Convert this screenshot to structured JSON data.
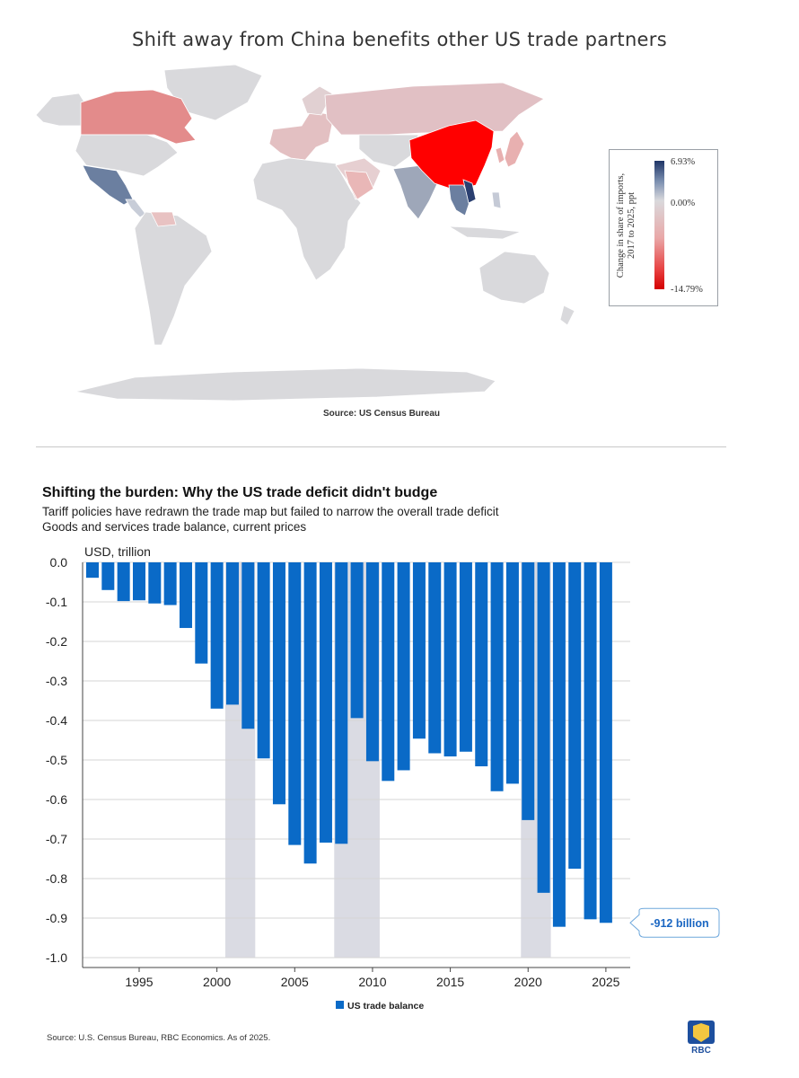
{
  "map": {
    "title": "Shift away from China benefits other US trade partners",
    "source": "Source: US Census Bureau",
    "legend": {
      "caption_line1": "Change in share of imports,",
      "caption_line2": "2017 to 2025, ppt",
      "max_label": "6.93%",
      "mid_label": "0.00%",
      "min_label": "-14.79%"
    }
  },
  "chart_data": {
    "type": "bar",
    "title": "Shifting the burden: Why the US trade deficit didn't budge",
    "subtitle": "Tariff policies have redrawn the trade map but failed to narrow the overall trade deficit",
    "subtitle2": "Goods and services trade balance, current prices",
    "ylabel": "USD, trillion",
    "ylim": [
      -1.0,
      0.0
    ],
    "y_ticks": [
      "0.0",
      "-0.1",
      "-0.2",
      "-0.3",
      "-0.4",
      "-0.5",
      "-0.6",
      "-0.7",
      "-0.8",
      "-0.9",
      "-1.0"
    ],
    "x_ticks": [
      "1995",
      "2000",
      "2005",
      "2010",
      "2015",
      "2020",
      "2025"
    ],
    "legend": "US trade balance",
    "annotation": "-912 billion",
    "series": [
      {
        "name": "US trade balance",
        "years": [
          1992,
          1993,
          1994,
          1995,
          1996,
          1997,
          1998,
          1999,
          2000,
          2001,
          2002,
          2003,
          2004,
          2005,
          2006,
          2007,
          2008,
          2009,
          2010,
          2011,
          2012,
          2013,
          2014,
          2015,
          2016,
          2017,
          2018,
          2019,
          2020,
          2021,
          2022,
          2023,
          2024,
          2025
        ],
        "values": [
          -0.039,
          -0.07,
          -0.098,
          -0.096,
          -0.104,
          -0.108,
          -0.166,
          -0.256,
          -0.37,
          -0.36,
          -0.421,
          -0.496,
          -0.612,
          -0.715,
          -0.762,
          -0.709,
          -0.712,
          -0.394,
          -0.503,
          -0.553,
          -0.526,
          -0.446,
          -0.483,
          -0.491,
          -0.479,
          -0.516,
          -0.579,
          -0.56,
          -0.652,
          -0.836,
          -0.922,
          -0.775,
          -0.903,
          -0.912
        ]
      }
    ],
    "recession_shading": [
      [
        2001,
        2002
      ],
      [
        2008,
        2010
      ],
      [
        2020,
        2021
      ]
    ]
  },
  "footer": {
    "source": "Source: U.S. Census Bureau, RBC Economics. As of 2025.",
    "logo_text": "RBC"
  },
  "colors": {
    "bar": "#0a6ac7",
    "recession": "#dadbe3",
    "china": "#ff0000",
    "canada": "#e38b8b",
    "mexico": "#6b7fa0",
    "neutral": "#d9d9dc"
  }
}
